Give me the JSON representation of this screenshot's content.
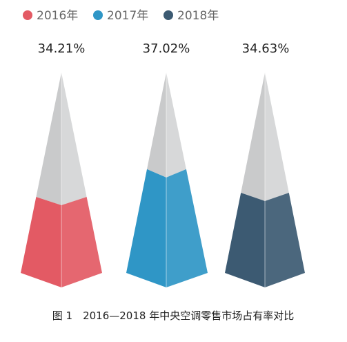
{
  "chart_data": {
    "type": "pyramid",
    "categories": [
      "2016年",
      "2017年",
      "2018年"
    ],
    "values": [
      34.21,
      37.02,
      34.63
    ],
    "value_labels": [
      "34.21%",
      "37.02%",
      "34.63%"
    ],
    "unit": "%",
    "legend_position": "top-left",
    "grid": false
  },
  "colors": {
    "series": [
      "#e35a64",
      "#2f96c6",
      "#3c5a72"
    ],
    "remainder_left": "#c9cacb",
    "remainder_right": "#d7d8d9",
    "label_text": "#222222",
    "legend_text": "#666666"
  },
  "caption": "图 1　2016—2018 年中央空调零售市场占有率对比"
}
